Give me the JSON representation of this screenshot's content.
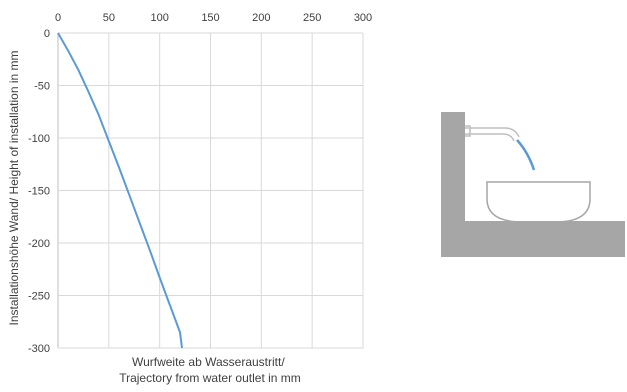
{
  "chart_data": {
    "type": "line",
    "xlabel_lines": [
      "Wurfweite ab Wasseraustritt/",
      "Trajectory from water outlet in mm"
    ],
    "ylabel": "Installationshöhe Wand/ Height of installation in mm",
    "xlim": [
      0,
      300
    ],
    "ylim": [
      -300,
      0
    ],
    "x_ticks": [
      0,
      50,
      100,
      150,
      200,
      250,
      300
    ],
    "y_ticks": [
      0,
      -50,
      -100,
      -150,
      -200,
      -250,
      -300
    ],
    "x_axis_position": "top",
    "grid": true,
    "line_color": "#5b9bd5",
    "series": [
      {
        "x": [
          0,
          10,
          20,
          30,
          40,
          50,
          60,
          70,
          80,
          90,
          100,
          110,
          120,
          122
        ],
        "y": [
          0,
          -17,
          -35,
          -56,
          -78,
          -103,
          -128,
          -154,
          -180,
          -206,
          -233,
          -259,
          -285,
          -300
        ]
      }
    ]
  },
  "illustration": {
    "wall_color": "#a6a6a6",
    "basin_color": "#a6a6a6",
    "spout_color": "#bfbfbf",
    "water_color": "#5b9bd5"
  }
}
